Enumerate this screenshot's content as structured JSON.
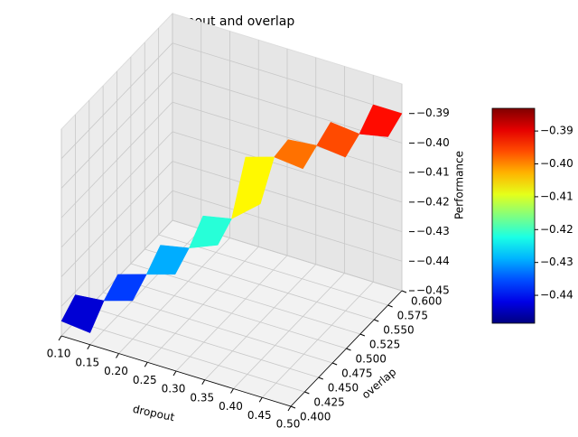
{
  "chart_data": {
    "type": "surface",
    "title": "dropout and overlap",
    "x_label": "dropout",
    "y_label": "overlap",
    "z_label": "Performance",
    "x": [
      0.1,
      0.15,
      0.2,
      0.25,
      0.3,
      0.35,
      0.4,
      0.45,
      0.5
    ],
    "y": [
      0.4,
      0.425,
      0.45,
      0.475,
      0.5,
      0.525,
      0.55,
      0.575,
      0.6
    ],
    "values": [
      [
        -0.445,
        -0.446,
        null,
        null,
        null,
        null,
        null,
        null,
        null
      ],
      [
        -0.441,
        -0.44,
        -0.437,
        null,
        null,
        null,
        null,
        null,
        null
      ],
      [
        null,
        -0.436,
        -0.433,
        -0.43,
        null,
        null,
        null,
        null,
        null
      ],
      [
        null,
        null,
        -0.428,
        -0.426,
        -0.422,
        null,
        null,
        null,
        null
      ],
      [
        null,
        null,
        null,
        -0.42,
        -0.418,
        -0.41,
        null,
        null,
        null
      ],
      [
        null,
        null,
        null,
        null,
        -0.402,
        -0.399,
        -0.4,
        null,
        null
      ],
      [
        null,
        null,
        null,
        null,
        null,
        -0.398,
        -0.397,
        -0.398,
        null
      ],
      [
        null,
        null,
        null,
        null,
        null,
        null,
        -0.394,
        -0.395,
        -0.393
      ],
      [
        null,
        null,
        null,
        null,
        null,
        null,
        null,
        -0.39,
        -0.39
      ]
    ],
    "colormap": "jet",
    "xlim": [
      0.1,
      0.5
    ],
    "ylim": [
      0.4,
      0.6
    ],
    "zlim": [
      -0.45,
      -0.38
    ],
    "xticks": [
      {
        "value": 0.1,
        "label": "0.10"
      },
      0.15,
      {
        "value": 0.2,
        "label": "0.20"
      },
      0.25,
      {
        "value": 0.3,
        "label": "0.30"
      },
      0.35,
      {
        "value": 0.4,
        "label": "0.40"
      },
      0.45,
      {
        "value": 0.5,
        "label": "0.50"
      }
    ],
    "yticks": [
      {
        "value": 0.4,
        "label": "0.400"
      },
      0.425,
      {
        "value": 0.45,
        "label": "0.450"
      },
      0.475,
      {
        "value": 0.5,
        "label": "0.500"
      },
      0.525,
      {
        "value": 0.55,
        "label": "0.550"
      },
      0.575,
      {
        "value": 0.6,
        "label": "0.600"
      }
    ],
    "zticks": [
      {
        "value": -0.45,
        "label": "−0.45"
      },
      {
        "value": -0.44,
        "label": "−0.44"
      },
      {
        "value": -0.43,
        "label": "−0.43"
      },
      {
        "value": -0.42,
        "label": "−0.42"
      },
      {
        "value": -0.41,
        "label": "−0.41"
      },
      {
        "value": -0.4,
        "label": "−0.40"
      },
      {
        "value": -0.39,
        "label": "−0.39"
      }
    ],
    "clim": [
      -0.4485,
      -0.3831
    ],
    "cticks": [
      {
        "value": -0.44,
        "label": "−0.44"
      },
      {
        "value": -0.43,
        "label": "−0.43"
      },
      {
        "value": -0.42,
        "label": "−0.42"
      },
      {
        "value": -0.41,
        "label": "−0.41"
      },
      {
        "value": -0.4,
        "label": "−0.40"
      },
      {
        "value": -0.39,
        "label": "−0.39"
      }
    ],
    "grid": true
  }
}
